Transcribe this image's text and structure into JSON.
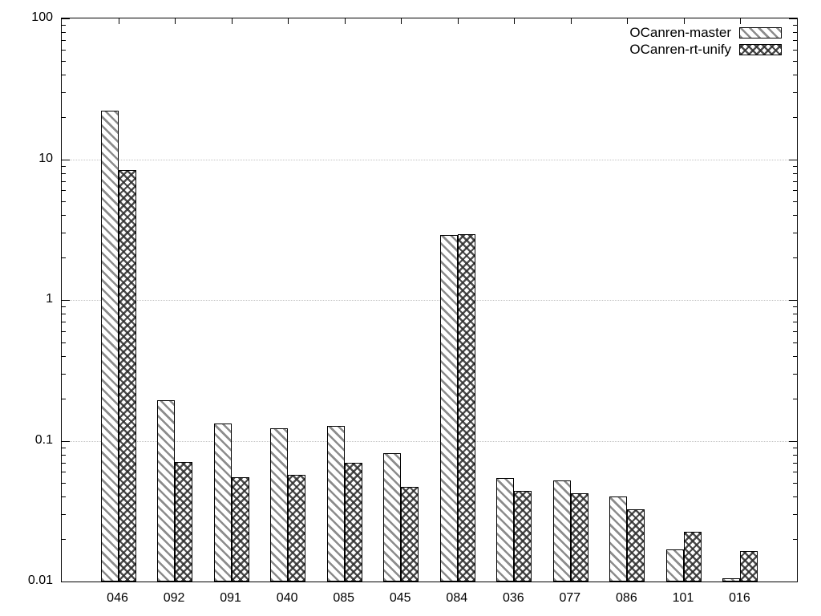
{
  "chart_data": {
    "type": "bar",
    "categories": [
      "046",
      "092",
      "091",
      "040",
      "085",
      "045",
      "084",
      "036",
      "077",
      "086",
      "101",
      "016"
    ],
    "series": [
      {
        "name": "OCanren-master",
        "pattern": "diagonal-hatch",
        "values": [
          22,
          0.195,
          0.133,
          0.122,
          0.127,
          0.082,
          2.9,
          0.054,
          0.052,
          0.04,
          0.017,
          0.0105
        ]
      },
      {
        "name": "OCanren-rt-unify",
        "pattern": "cross-hatch",
        "values": [
          8.4,
          0.071,
          0.055,
          0.057,
          0.07,
          0.047,
          2.95,
          0.044,
          0.0425,
          0.0325,
          0.0225,
          0.0165
        ]
      }
    ],
    "y_scale": "log",
    "ylim": [
      0.01,
      100
    ],
    "y_ticks": [
      {
        "label": "100",
        "value": 100
      },
      {
        "label": "10",
        "value": 10
      },
      {
        "label": "1",
        "value": 1
      },
      {
        "label": "0.1",
        "value": 0.1
      },
      {
        "label": "0.01",
        "value": 0.01
      }
    ],
    "gridline_values": [
      10,
      1,
      0.1
    ],
    "grid": "horizontal dotted lines at decades",
    "legend_position": "top-right-inside"
  },
  "colors": {
    "background": "#ffffff",
    "axis": "#000000",
    "text": "#000000",
    "grid_dotted": "#c2c2c2",
    "bar_fill": "#ffffff",
    "diagonal_hatch_line": "#8c8c8c",
    "cross_hatch_line": "#2d2d2d"
  }
}
